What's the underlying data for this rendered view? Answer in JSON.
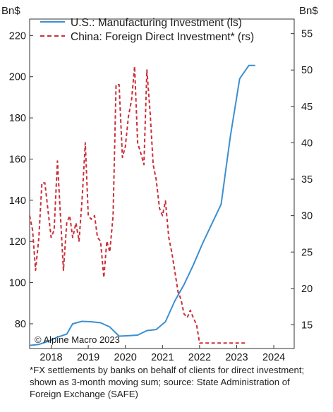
{
  "chart_data": {
    "type": "line",
    "left_axis_unit": "Bn$",
    "right_axis_unit": "Bn$",
    "y_left_lim": [
      68,
      228
    ],
    "y_left_ticks": [
      80,
      100,
      120,
      140,
      160,
      180,
      200,
      220
    ],
    "y_right_lim": [
      11.75,
      57.0
    ],
    "y_right_ticks": [
      15,
      20,
      25,
      30,
      35,
      40,
      45,
      50,
      55
    ],
    "x_lim": [
      2017.42,
      2024.55
    ],
    "x_ticks": [
      2018,
      2019,
      2020,
      2021,
      2022,
      2023,
      2024
    ],
    "legend_position": "top-left",
    "watermark": "© Alpine Macro 2023",
    "series": [
      {
        "name": "U.S.: Manufacturing Investment (ls)",
        "axis": "left",
        "color": "#3b8fd0",
        "style": "solid",
        "x": [
          2017.42,
          2017.67,
          2017.92,
          2018.17,
          2018.42,
          2018.58,
          2018.83,
          2019.08,
          2019.33,
          2019.58,
          2019.83,
          2020.08,
          2020.33,
          2020.58,
          2020.83,
          2021.08,
          2021.33,
          2021.58,
          2021.83,
          2022.08,
          2022.33,
          2022.58,
          2022.83,
          2023.08,
          2023.33,
          2023.5
        ],
        "y": [
          69.5,
          70,
          71.5,
          73.5,
          75,
          80,
          81.2,
          81,
          80.5,
          78.5,
          74,
          74.2,
          74.5,
          76.7,
          77.2,
          81,
          91,
          99,
          108.5,
          119,
          128.5,
          138,
          171,
          199,
          205.5,
          205.5
        ]
      },
      {
        "name": "China: Foreign Direct Investment* (rs)",
        "axis": "right",
        "color": "#c9303a",
        "style": "dashed",
        "x": [
          2017.42,
          2017.5,
          2017.58,
          2017.67,
          2017.75,
          2017.83,
          2017.92,
          2018.0,
          2018.08,
          2018.17,
          2018.25,
          2018.33,
          2018.42,
          2018.5,
          2018.58,
          2018.67,
          2018.75,
          2018.83,
          2018.92,
          2019.0,
          2019.08,
          2019.17,
          2019.25,
          2019.33,
          2019.42,
          2019.5,
          2019.58,
          2019.67,
          2019.75,
          2019.83,
          2019.92,
          2020.0,
          2020.08,
          2020.17,
          2020.25,
          2020.33,
          2020.42,
          2020.5,
          2020.58,
          2020.67,
          2020.75,
          2020.83,
          2020.92,
          2021.0,
          2021.08,
          2021.17,
          2021.25,
          2021.33,
          2021.42,
          2021.5,
          2021.58,
          2021.67,
          2021.75,
          2021.83,
          2021.92,
          2022.0,
          2022.08,
          2022.17,
          2022.25,
          2022.33,
          2022.42,
          2022.5,
          2022.58,
          2022.67,
          2022.75,
          2022.83,
          2022.92,
          2023.0,
          2023.08,
          2023.17,
          2023.25
        ],
        "y": [
          30,
          28,
          22.5,
          27,
          34.5,
          34.5,
          30.5,
          27,
          28,
          37.5,
          30,
          22.5,
          29,
          30,
          27,
          29,
          26.5,
          32,
          40,
          30,
          29.5,
          30,
          27,
          26.5,
          21.5,
          26.5,
          25,
          30,
          48,
          48,
          38,
          39.5,
          43.5,
          46,
          50.5,
          40,
          38.5,
          37,
          50,
          44,
          37,
          35,
          31,
          30,
          32,
          27,
          25,
          22.5,
          19.5,
          18.5,
          16.5,
          16,
          17,
          16,
          15,
          12.5,
          12.5,
          12.5,
          12.5,
          12.5,
          12.5,
          12.5,
          12.5,
          12.5,
          12.5,
          12.5,
          12.5,
          12.5,
          12.5,
          12.5,
          12.5
        ]
      }
    ]
  },
  "footnote": {
    "line1": "*FX settlements by banks on behalf of clients for direct investment;",
    "line2": "shown as 3-month moving sum; source: State Administration of",
    "line3": "Foreign Exchange (SAFE)"
  }
}
